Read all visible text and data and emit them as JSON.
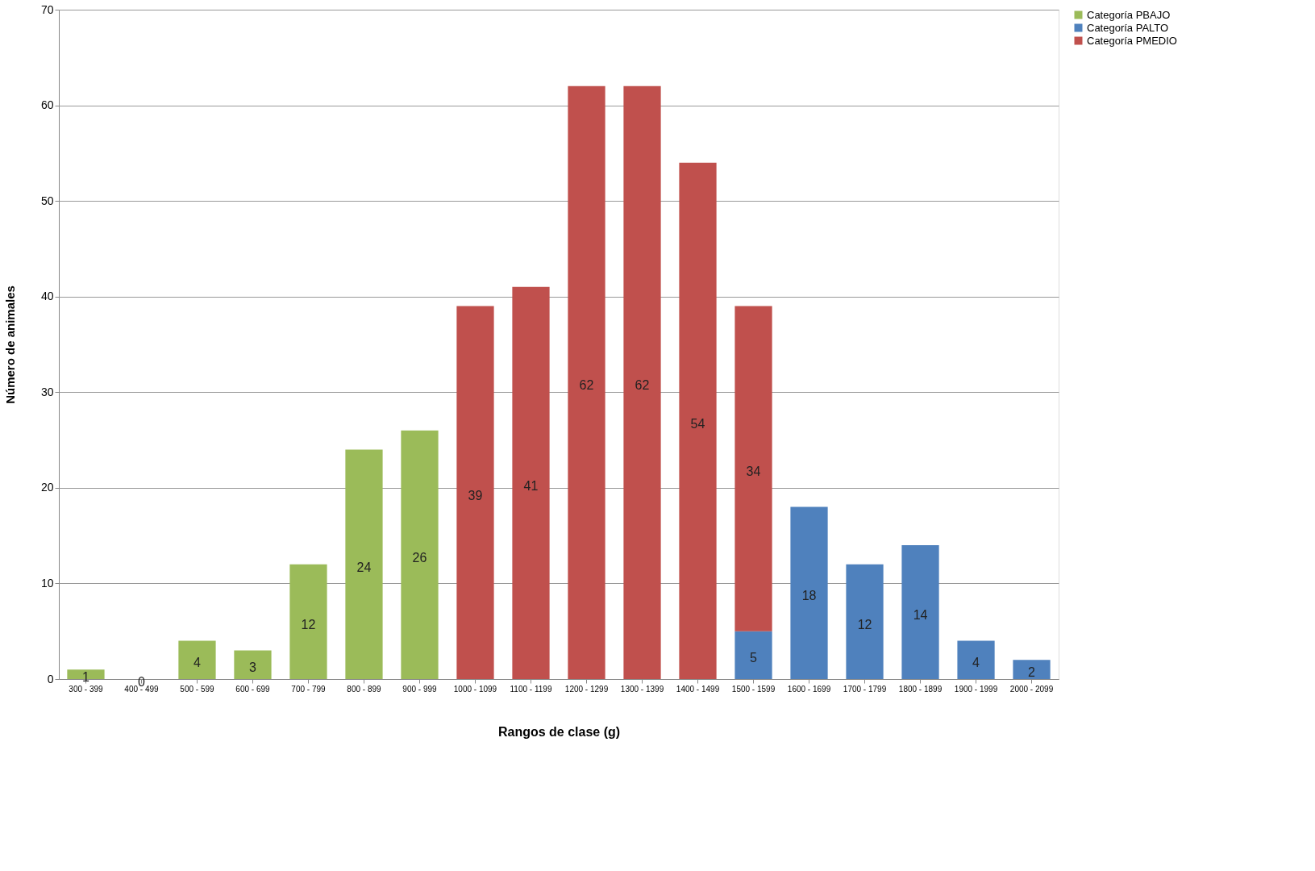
{
  "chart_data": {
    "type": "bar",
    "stacked": true,
    "xlabel": "Rangos de clase (g)",
    "ylabel": "Número de animales",
    "categories": [
      "300 - 399",
      "400 - 499",
      "500 - 599",
      "600 - 699",
      "700 - 799",
      "800 - 899",
      "900 - 999",
      "1000 - 1099",
      "1100 - 1199",
      "1200 - 1299",
      "1300 - 1399",
      "1400 - 1499",
      "1500 - 1599",
      "1600 - 1699",
      "1700 - 1799",
      "1800 - 1899",
      "1900 - 1999",
      "2000 - 2099"
    ],
    "series": [
      {
        "name": "Categoría PBAJO",
        "color": "#9bbb59",
        "values": [
          1,
          0,
          4,
          3,
          12,
          24,
          26,
          null,
          null,
          null,
          null,
          null,
          null,
          null,
          null,
          null,
          null,
          null
        ]
      },
      {
        "name": "Categoría PALTO",
        "color": "#4f81bd",
        "values": [
          null,
          null,
          null,
          null,
          null,
          null,
          null,
          null,
          null,
          null,
          null,
          null,
          5,
          18,
          12,
          14,
          4,
          2
        ]
      },
      {
        "name": "Categoría PMEDIO",
        "color": "#c0504d",
        "values": [
          null,
          null,
          null,
          null,
          null,
          null,
          null,
          39,
          41,
          62,
          62,
          54,
          34,
          null,
          null,
          null,
          null,
          null
        ]
      }
    ],
    "ylim": [
      0,
      70
    ],
    "yticks": [
      0,
      10,
      20,
      30,
      40,
      50,
      60,
      70
    ],
    "grid": "y",
    "legend": "right",
    "data_labels": true
  }
}
